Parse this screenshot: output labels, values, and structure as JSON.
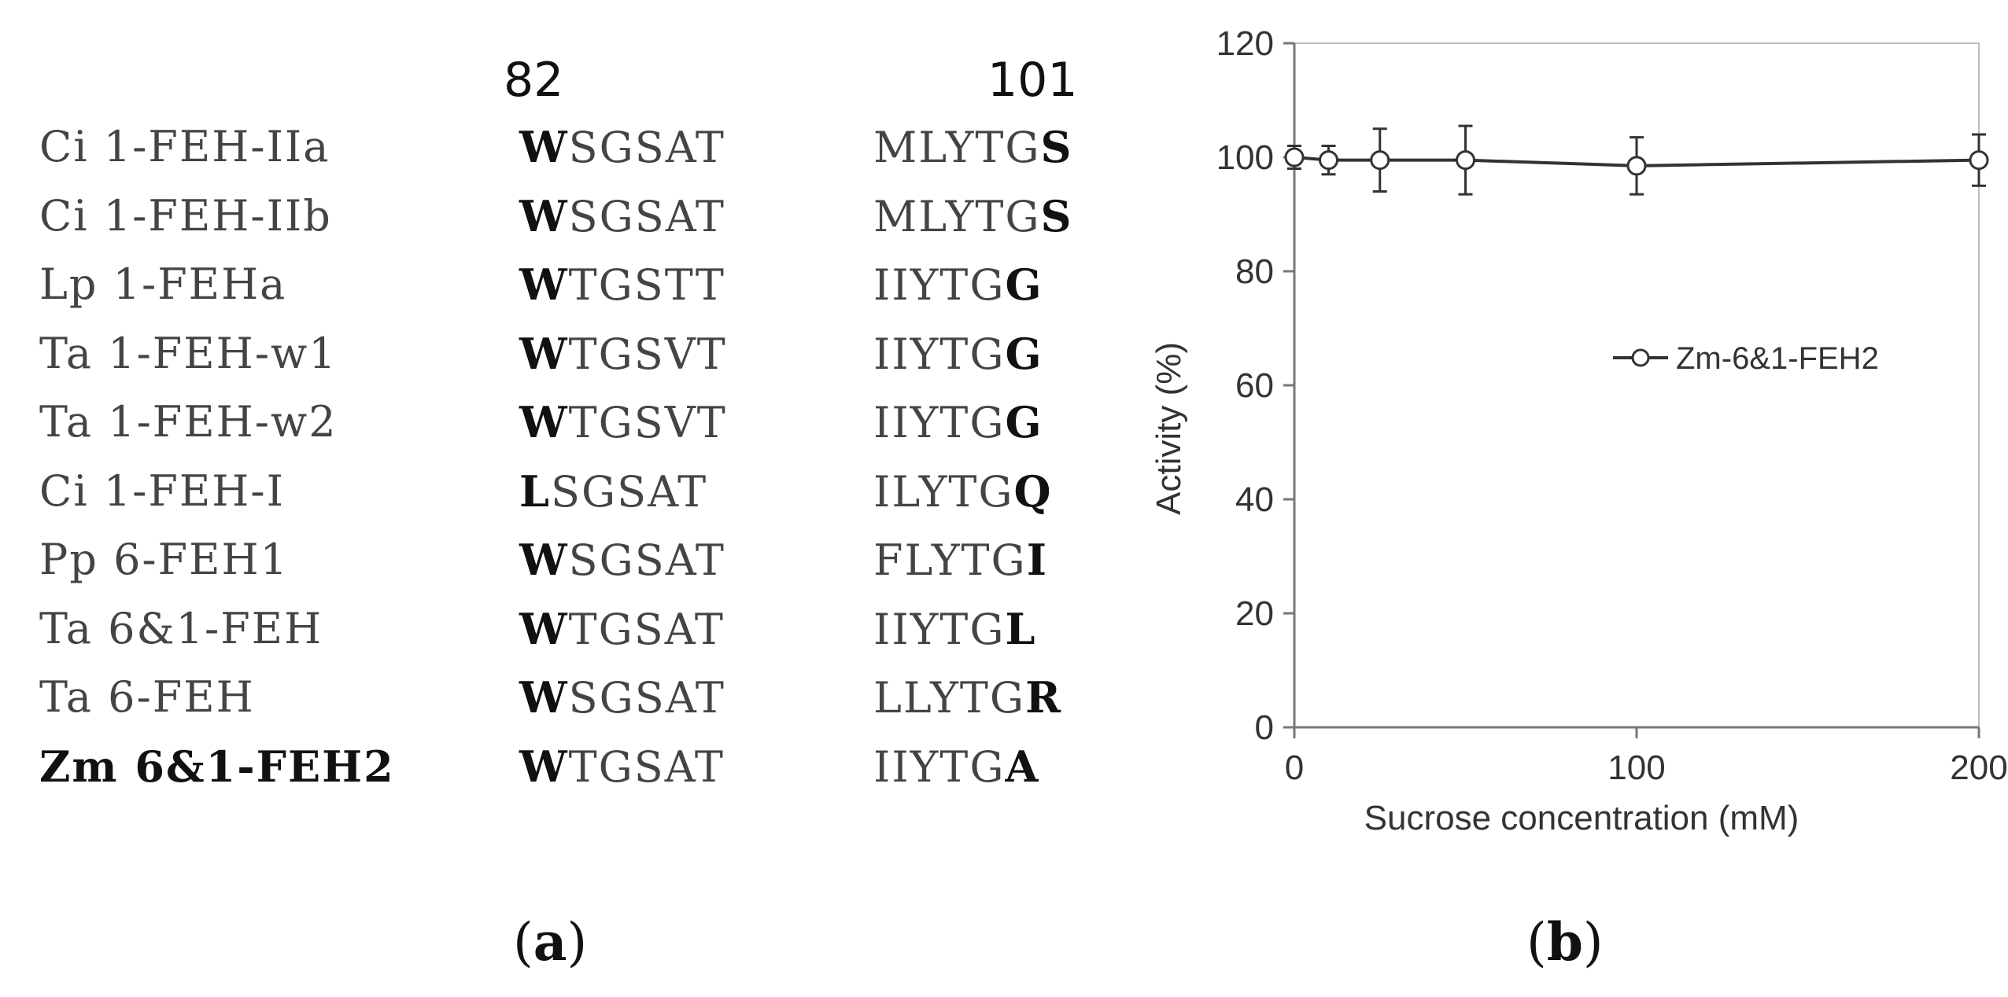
{
  "panel_a": {
    "label": "a",
    "positions": [
      "82",
      "101"
    ],
    "rows": [
      {
        "name": "Ci 1-FEH-IIa",
        "seg1_first": "W",
        "seg1_rest": "SGSAT",
        "seg2_main": "MLYTG",
        "seg2_last": "S",
        "bold": false
      },
      {
        "name": "Ci 1-FEH-IIb",
        "seg1_first": "W",
        "seg1_rest": "SGSAT",
        "seg2_main": "MLYTG",
        "seg2_last": "S",
        "bold": false
      },
      {
        "name": "Lp 1-FEHa",
        "seg1_first": "W",
        "seg1_rest": "TGSTT",
        "seg2_main": "IIYTG",
        "seg2_last": "G",
        "bold": false
      },
      {
        "name": "Ta 1-FEH-w1",
        "seg1_first": "W",
        "seg1_rest": "TGSVT",
        "seg2_main": "IIYTG",
        "seg2_last": "G",
        "bold": false
      },
      {
        "name": "Ta 1-FEH-w2",
        "seg1_first": "W",
        "seg1_rest": "TGSVT",
        "seg2_main": "IIYTG",
        "seg2_last": "G",
        "bold": false
      },
      {
        "name": "Ci 1-FEH-I",
        "seg1_first": "L",
        "seg1_rest": "SGSAT",
        "seg2_main": "ILYTG",
        "seg2_last": "Q",
        "bold": false
      },
      {
        "name": "Pp 6-FEH1",
        "seg1_first": "W",
        "seg1_rest": "SGSAT",
        "seg2_main": "FLYTG",
        "seg2_last": "I",
        "bold": false
      },
      {
        "name": "Ta 6&1-FEH",
        "seg1_first": "W",
        "seg1_rest": "TGSAT",
        "seg2_main": "IIYTG",
        "seg2_last": "L",
        "bold": false
      },
      {
        "name": "Ta 6-FEH",
        "seg1_first": "W",
        "seg1_rest": "SGSAT",
        "seg2_main": "LLYTG",
        "seg2_last": "R",
        "bold": false
      },
      {
        "name": "Zm 6&1-FEH2",
        "seg1_first": "W",
        "seg1_rest": "TGSAT",
        "seg2_main": "IIYTG",
        "seg2_last": "A",
        "bold": true
      }
    ]
  },
  "panel_b": {
    "label": "b"
  },
  "chart_data": {
    "type": "line",
    "title": "",
    "xlabel": "Sucrose concentration (mM)",
    "ylabel": "Activity (%)",
    "xlim": [
      0,
      200
    ],
    "ylim": [
      0,
      120
    ],
    "xticks": [
      0,
      100,
      200
    ],
    "yticks": [
      0,
      20,
      40,
      60,
      80,
      100,
      120
    ],
    "grid": false,
    "legend_position": "right",
    "series": [
      {
        "name": "Zm-6&1-FEH2",
        "marker": "open-circle",
        "color": "#333333",
        "x": [
          0,
          10,
          25,
          50,
          100,
          200
        ],
        "y": [
          100,
          99.5,
          99.5,
          99.5,
          98.5,
          99.5
        ],
        "err": [
          2,
          2.5,
          5.5,
          6,
          5,
          4.5
        ]
      }
    ]
  }
}
